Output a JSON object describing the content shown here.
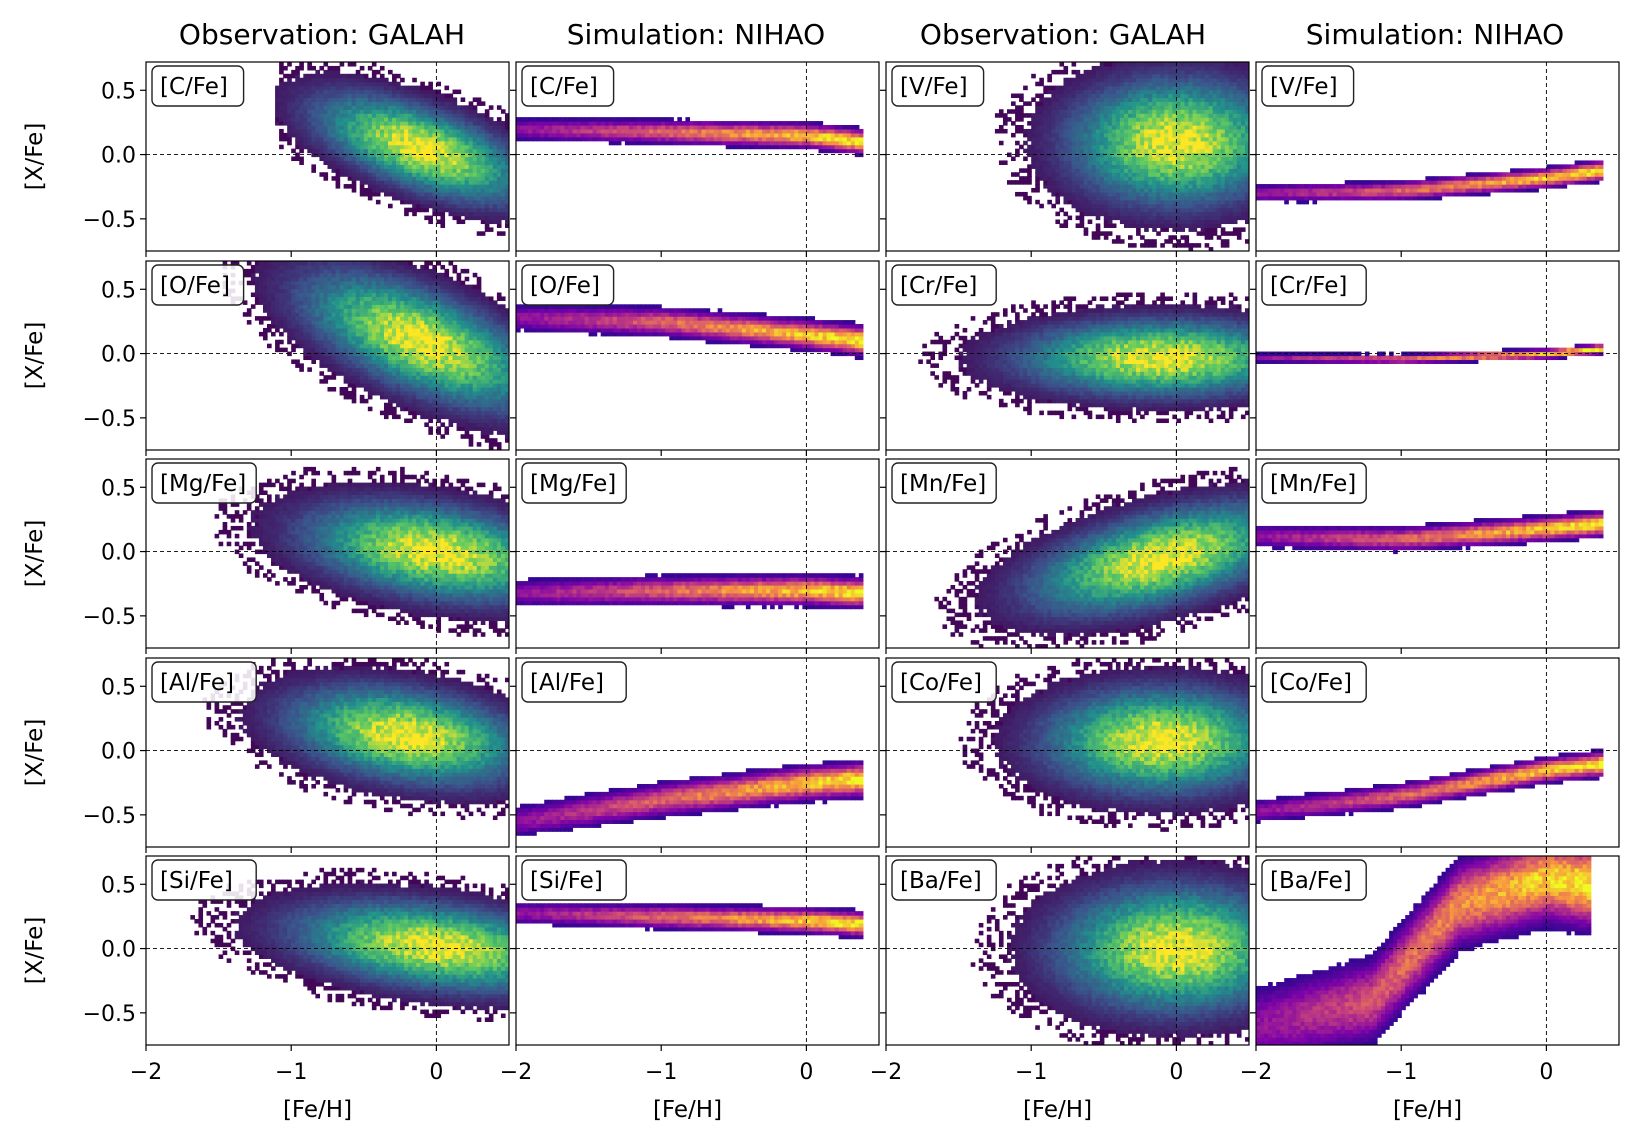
{
  "figure": {
    "column_titles": [
      "Observation: GALAH",
      "Simulation: NIHAO",
      "Observation: GALAH",
      "Simulation: NIHAO"
    ],
    "ylabel": "[X/Fe]",
    "xlabel": "[Fe/H]",
    "xticks": [
      -2,
      -1,
      0
    ],
    "yticks": [
      0.5,
      0.0,
      -0.5
    ],
    "xlim": [
      -2,
      0.5
    ],
    "ylim": [
      -0.75,
      0.72
    ],
    "obs_colormap": "viridis",
    "sim_colormap": "plasma"
  },
  "chart_data": {
    "type": "heatmap",
    "description_x": "[Fe/H]",
    "description_y": "[X/Fe]",
    "reference_lines": {
      "x": 0.0,
      "y": 0.0
    },
    "panels": [
      {
        "label": "[C/Fe]",
        "source": "GALAH",
        "row": 0,
        "col": 0,
        "cmap": "viridis",
        "peak": [
          -0.1,
          0.05
        ],
        "spread": [
          0.45,
          0.2
        ],
        "tilt": -0.35,
        "xmin": -1.1
      },
      {
        "label": "[C/Fe]",
        "source": "NIHAO",
        "row": 0,
        "col": 1,
        "cmap": "plasma",
        "track": [
          [
            -2.0,
            0.2
          ],
          [
            -1.0,
            0.18
          ],
          [
            0.0,
            0.15
          ],
          [
            0.4,
            0.1
          ]
        ],
        "width": 0.05
      },
      {
        "label": "[V/Fe]",
        "source": "GALAH",
        "row": 0,
        "col": 2,
        "cmap": "viridis",
        "peak": [
          0.0,
          0.1
        ],
        "spread": [
          0.45,
          0.3
        ],
        "tilt": 0.0,
        "xmin": -1.6
      },
      {
        "label": "[V/Fe]",
        "source": "NIHAO",
        "row": 0,
        "col": 3,
        "cmap": "plasma",
        "track": [
          [
            -2.0,
            -0.3
          ],
          [
            -1.0,
            -0.28
          ],
          [
            0.0,
            -0.18
          ],
          [
            0.4,
            -0.12
          ]
        ],
        "width": 0.04
      },
      {
        "label": "[O/Fe]",
        "source": "GALAH",
        "row": 1,
        "col": 0,
        "cmap": "viridis",
        "peak": [
          -0.1,
          0.1
        ],
        "spread": [
          0.5,
          0.25
        ],
        "tilt": -0.4,
        "xmin": -2.0
      },
      {
        "label": "[O/Fe]",
        "source": "NIHAO",
        "row": 1,
        "col": 1,
        "cmap": "plasma",
        "track": [
          [
            -2.0,
            0.28
          ],
          [
            -1.0,
            0.25
          ],
          [
            0.0,
            0.15
          ],
          [
            0.4,
            0.1
          ]
        ],
        "width": 0.06
      },
      {
        "label": "[Cr/Fe]",
        "source": "GALAH",
        "row": 1,
        "col": 2,
        "cmap": "viridis",
        "peak": [
          -0.1,
          -0.03
        ],
        "spread": [
          0.6,
          0.18
        ],
        "tilt": 0.0,
        "xmin": -2.0
      },
      {
        "label": "[Cr/Fe]",
        "source": "NIHAO",
        "row": 1,
        "col": 3,
        "cmap": "plasma",
        "track": [
          [
            -2.0,
            -0.03
          ],
          [
            -1.0,
            -0.04
          ],
          [
            0.0,
            0.0
          ],
          [
            0.4,
            0.04
          ]
        ],
        "width": 0.02
      },
      {
        "label": "[Mg/Fe]",
        "source": "GALAH",
        "row": 2,
        "col": 0,
        "cmap": "viridis",
        "peak": [
          0.0,
          0.0
        ],
        "spread": [
          0.55,
          0.22
        ],
        "tilt": -0.15,
        "xmin": -2.0
      },
      {
        "label": "[Mg/Fe]",
        "source": "NIHAO",
        "row": 2,
        "col": 1,
        "cmap": "plasma",
        "track": [
          [
            -2.0,
            -0.32
          ],
          [
            -1.0,
            -0.3
          ],
          [
            0.0,
            -0.3
          ],
          [
            0.4,
            -0.32
          ]
        ],
        "width": 0.06
      },
      {
        "label": "[Mn/Fe]",
        "source": "GALAH",
        "row": 2,
        "col": 2,
        "cmap": "viridis",
        "peak": [
          -0.1,
          -0.05
        ],
        "spread": [
          0.55,
          0.22
        ],
        "tilt": 0.25,
        "xmin": -2.0
      },
      {
        "label": "[Mn/Fe]",
        "source": "NIHAO",
        "row": 2,
        "col": 3,
        "cmap": "plasma",
        "track": [
          [
            -2.0,
            0.12
          ],
          [
            -1.0,
            0.1
          ],
          [
            0.0,
            0.18
          ],
          [
            0.4,
            0.22
          ]
        ],
        "width": 0.05
      },
      {
        "label": "[Al/Fe]",
        "source": "GALAH",
        "row": 3,
        "col": 0,
        "cmap": "viridis",
        "peak": [
          -0.2,
          0.12
        ],
        "spread": [
          0.5,
          0.22
        ],
        "tilt": -0.15,
        "xmin": -1.9
      },
      {
        "label": "[Al/Fe]",
        "source": "NIHAO",
        "row": 3,
        "col": 1,
        "cmap": "plasma",
        "track": [
          [
            -2.0,
            -0.55
          ],
          [
            -1.0,
            -0.38
          ],
          [
            0.0,
            -0.25
          ],
          [
            0.4,
            -0.22
          ]
        ],
        "width": 0.07
      },
      {
        "label": "[Co/Fe]",
        "source": "GALAH",
        "row": 3,
        "col": 2,
        "cmap": "viridis",
        "peak": [
          -0.1,
          0.08
        ],
        "spread": [
          0.5,
          0.25
        ],
        "tilt": 0.0,
        "xmin": -2.0
      },
      {
        "label": "[Co/Fe]",
        "source": "NIHAO",
        "row": 3,
        "col": 3,
        "cmap": "plasma",
        "track": [
          [
            -2.0,
            -0.47
          ],
          [
            -1.0,
            -0.35
          ],
          [
            0.0,
            -0.15
          ],
          [
            0.4,
            -0.1
          ]
        ],
        "width": 0.05
      },
      {
        "label": "[Si/Fe]",
        "source": "GALAH",
        "row": 4,
        "col": 0,
        "cmap": "viridis",
        "peak": [
          0.0,
          0.02
        ],
        "spread": [
          0.6,
          0.2
        ],
        "tilt": -0.12,
        "xmin": -2.0
      },
      {
        "label": "[Si/Fe]",
        "source": "NIHAO",
        "row": 4,
        "col": 1,
        "cmap": "plasma",
        "track": [
          [
            -2.0,
            0.28
          ],
          [
            -1.0,
            0.25
          ],
          [
            0.0,
            0.22
          ],
          [
            0.4,
            0.19
          ]
        ],
        "width": 0.05
      },
      {
        "label": "[Ba/Fe]",
        "source": "GALAH",
        "row": 4,
        "col": 2,
        "cmap": "viridis",
        "peak": [
          0.0,
          0.0
        ],
        "spread": [
          0.5,
          0.3
        ],
        "tilt": 0.0,
        "xmin": -2.0
      },
      {
        "label": "[Ba/Fe]",
        "source": "NIHAO",
        "row": 4,
        "col": 3,
        "cmap": "plasma",
        "track": [
          [
            -2.0,
            -0.6
          ],
          [
            -1.2,
            -0.4
          ],
          [
            -0.6,
            0.35
          ],
          [
            0.0,
            0.55
          ],
          [
            0.3,
            0.5
          ]
        ],
        "width": 0.18
      }
    ]
  }
}
